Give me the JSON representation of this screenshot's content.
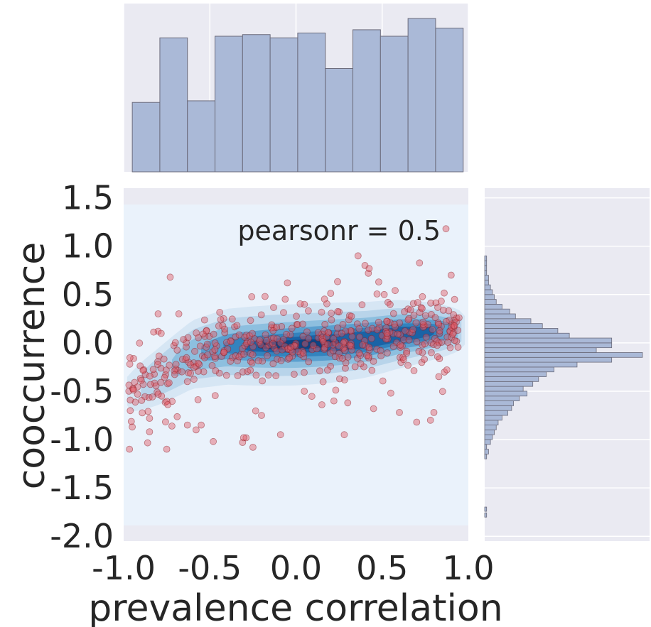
{
  "chart_data": {
    "type": "scatter",
    "title": "",
    "xlabel": "prevalence correlation",
    "ylabel": "cooccurrence",
    "xlim": [
      -1.0,
      1.0
    ],
    "ylim": [
      -2.05,
      1.6
    ],
    "xticks": [
      "-1.0",
      "-0.5",
      "0.0",
      "0.5",
      "1.0"
    ],
    "yticks": [
      "1.5",
      "1.0",
      "0.5",
      "0.0",
      "-0.5",
      "-1.0",
      "-1.5",
      "-2.0"
    ],
    "annotation": "pearsonr = 0.5",
    "grid": true,
    "colors": {
      "panel_background": "#eaeaf2",
      "histogram_fill": "#aab9d7",
      "histogram_edge": "#6b6b7b",
      "point_fill": "#e35a66",
      "point_edge": "#8a1a22",
      "kde_levels": [
        "#eaf2fb",
        "#d6e6f4",
        "#b8d4ea",
        "#8dbfdf",
        "#5a9fcf",
        "#3383be",
        "#1a63a6",
        "#0b4585"
      ]
    },
    "kde_ridge": {
      "x": [
        -0.95,
        -0.8,
        -0.6,
        -0.4,
        -0.2,
        0.0,
        0.2,
        0.4,
        0.6,
        0.8,
        0.95
      ],
      "y": [
        -0.5,
        -0.35,
        -0.12,
        -0.04,
        -0.03,
        -0.02,
        0.0,
        0.03,
        0.09,
        0.12,
        0.13
      ]
    },
    "x_histogram": {
      "bin_edges": [
        -0.95,
        -0.79,
        -0.63,
        -0.47,
        -0.31,
        -0.15,
        0.01,
        0.17,
        0.33,
        0.49,
        0.65,
        0.81,
        0.97
      ],
      "counts": [
        43,
        83,
        44,
        84,
        85,
        83,
        86,
        64,
        88,
        84,
        95,
        89
      ]
    },
    "y_histogram": {
      "bin_edges": [
        -1.2,
        -1.15,
        -1.1,
        -1.05,
        -1.0,
        -0.95,
        -0.9,
        -0.85,
        -0.8,
        -0.75,
        -0.7,
        -0.65,
        -0.6,
        -0.55,
        -0.5,
        -0.45,
        -0.4,
        -0.35,
        -0.3,
        -0.25,
        -0.2,
        -0.15,
        -0.1,
        -0.05,
        0.0,
        0.05,
        0.1,
        0.15,
        0.2,
        0.25,
        0.3,
        0.35,
        0.4,
        0.45,
        0.5,
        0.55,
        0.6,
        0.65,
        0.7,
        0.75,
        0.8,
        0.85,
        0.9,
        0.95,
        1.0,
        1.05,
        1.1,
        1.15
      ],
      "counts": [
        1,
        2,
        1,
        3,
        4,
        5,
        6,
        7,
        9,
        12,
        14,
        15,
        18,
        22,
        20,
        25,
        28,
        32,
        36,
        48,
        66,
        82,
        58,
        66,
        66,
        44,
        38,
        30,
        24,
        16,
        13,
        9,
        6,
        5,
        4,
        3,
        2,
        2,
        1,
        1,
        1,
        1,
        0,
        0,
        0,
        0,
        0
      ],
      "outlier_bins": [
        {
          "y": -1.72,
          "count": 1
        },
        {
          "y": -1.78,
          "count": 1
        }
      ]
    },
    "points": {
      "x": [
        0.87,
        0.36,
        0.42,
        0.4,
        -0.73,
        0.48,
        0.9,
        -0.05,
        -0.18,
        -0.8,
        -0.97,
        -0.95,
        -0.72,
        -0.63,
        -0.55,
        -0.58,
        -0.48,
        -0.31,
        0.55,
        0.8,
        0.78,
        0.22,
        0.3,
        0.15,
        0.45,
        0.6,
        0.7,
        0.28,
        -0.09,
        -0.25,
        -0.2,
        -0.85,
        -0.85,
        -0.75,
        -0.78,
        -0.8,
        -0.68,
        0.65,
        0.92,
        0.25
      ],
      "y": [
        1.18,
        0.9,
        0.72,
        0.8,
        0.68,
        0.63,
        0.7,
        0.62,
        0.48,
        0.3,
        -0.5,
        -0.87,
        -0.86,
        -0.85,
        -0.85,
        -0.9,
        -1.02,
        -1.03,
        -0.52,
        -0.72,
        -0.8,
        -0.6,
        -0.62,
        -0.64,
        -0.68,
        -0.72,
        -0.82,
        -0.95,
        -0.95,
        -1.08,
        -0.75,
        -0.78,
        -0.92,
        -1.1,
        -0.55,
        0.12,
        0.3,
        0.35,
        0.45,
        0.32
      ]
    }
  }
}
